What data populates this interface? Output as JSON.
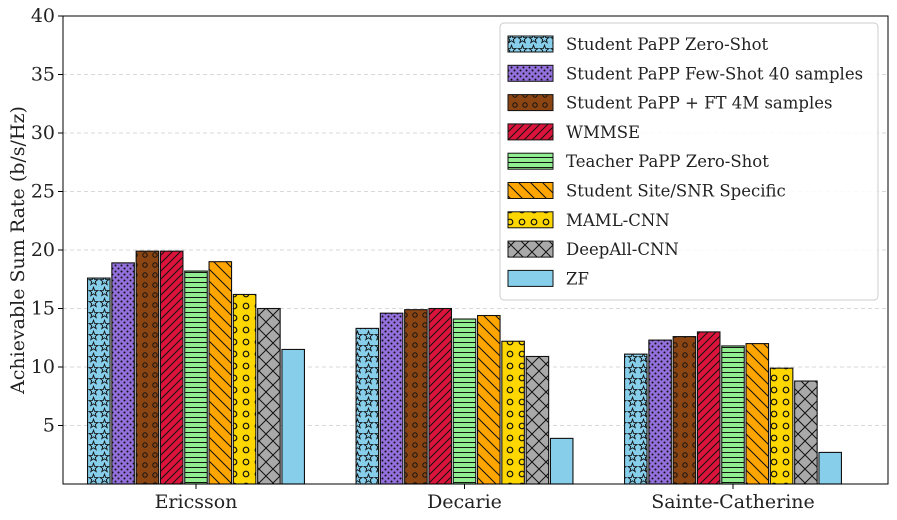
{
  "chart_data": {
    "type": "bar",
    "ylabel": "Achievable Sum Rate (b/s/Hz)",
    "xlabel": "",
    "ylim": [
      0,
      40
    ],
    "yticks": [
      5,
      10,
      15,
      20,
      25,
      30,
      35,
      40
    ],
    "grid": "horizontal dashed",
    "legend_position": "top-right",
    "categories": [
      "Ericsson",
      "Decarie",
      "Sainte-Catherine"
    ],
    "series": [
      {
        "name": "Student PaPP Zero-Shot",
        "values": [
          17.6,
          13.3,
          11.1
        ],
        "color": "#87CEEB",
        "pattern": "stars"
      },
      {
        "name": "Student PaPP Few-Shot 40 samples",
        "values": [
          18.9,
          14.6,
          12.3
        ],
        "color": "#9370DB",
        "pattern": "dots"
      },
      {
        "name": "Student PaPP + FT 4M samples",
        "values": [
          19.9,
          14.9,
          12.6
        ],
        "color": "#8B4513",
        "pattern": "circles"
      },
      {
        "name": "WMMSE",
        "values": [
          19.9,
          15.0,
          13.0
        ],
        "color": "#DC143C",
        "pattern": "diag"
      },
      {
        "name": "Teacher PaPP Zero-Shot",
        "values": [
          18.2,
          14.1,
          11.8
        ],
        "color": "#90EE90",
        "pattern": "hlines"
      },
      {
        "name": "Student Site/SNR Specific",
        "values": [
          19.0,
          14.4,
          12.0
        ],
        "color": "#FFA500",
        "pattern": "backdiag"
      },
      {
        "name": "MAML-CNN",
        "values": [
          16.2,
          12.2,
          9.9
        ],
        "color": "#FFD700",
        "pattern": "bigcircles"
      },
      {
        "name": "DeepAll-CNN",
        "values": [
          15.0,
          10.9,
          8.8
        ],
        "color": "#A9A9A9",
        "pattern": "cross"
      },
      {
        "name": "ZF",
        "values": [
          11.5,
          3.9,
          2.7
        ],
        "color": "#87CEEB",
        "pattern": "none"
      }
    ]
  }
}
